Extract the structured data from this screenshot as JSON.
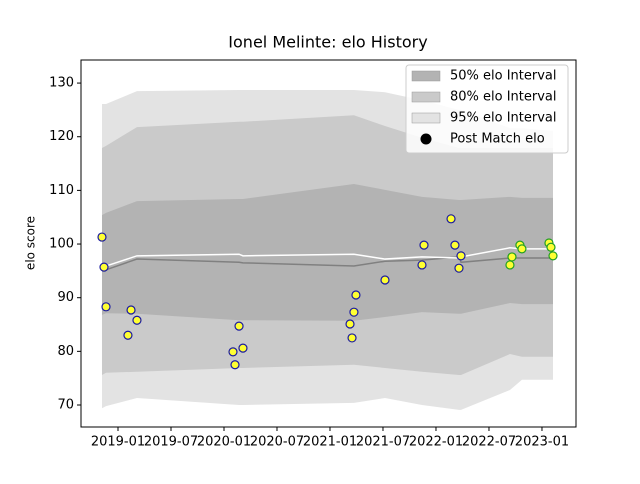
{
  "chart_data": {
    "type": "interval",
    "title": "Ionel Melinte: elo History",
    "y_label": "elo score",
    "xlim": [
      2018.651,
      2023.321
    ],
    "ylim": [
      65.9,
      134.3
    ],
    "xticks": [
      {
        "value": 2019.0,
        "label": "2019-01"
      },
      {
        "value": 2019.5,
        "label": "2019-07"
      },
      {
        "value": 2020.0,
        "label": "2020-01"
      },
      {
        "value": 2020.5,
        "label": "2020-07"
      },
      {
        "value": 2021.0,
        "label": "2021-01"
      },
      {
        "value": 2021.5,
        "label": "2021-07"
      },
      {
        "value": 2022.0,
        "label": "2022-01"
      },
      {
        "value": 2022.5,
        "label": "2022-07"
      },
      {
        "value": 2023.0,
        "label": "2023-01"
      }
    ],
    "yticks": [
      70,
      80,
      90,
      100,
      110,
      120,
      130
    ],
    "legend": "upper right",
    "band_x": [
      2018.849,
      2018.887,
      2019.179,
      2020.142,
      2020.179,
      2021.226,
      2021.519,
      2021.868,
      2022.217,
      2022.236,
      2022.698,
      2022.811,
      2023.104
    ],
    "bands": [
      {
        "name": "95% elo Interval",
        "color": "#e3e3e3",
        "upper": [
          126.1,
          126.1,
          128.5,
          128.7,
          128.7,
          128.7,
          128.3,
          126.8,
          125.0,
          125.0,
          121.6,
          121.6,
          121.1
        ],
        "lower": [
          69.4,
          69.8,
          71.3,
          70.0,
          70.0,
          70.4,
          71.3,
          70.0,
          69.1,
          69.1,
          72.8,
          74.7,
          74.7
        ]
      },
      {
        "name": "80% elo Interval",
        "color": "#cacaca",
        "upper": [
          117.9,
          118.3,
          121.8,
          122.8,
          122.8,
          124.0,
          122.0,
          119.8,
          117.9,
          117.9,
          117.9,
          117.9,
          117.9
        ],
        "lower": [
          75.6,
          76.0,
          76.2,
          76.9,
          76.9,
          77.5,
          76.9,
          76.2,
          75.6,
          75.6,
          79.5,
          79.0,
          79.0
        ]
      },
      {
        "name": "50% elo Interval",
        "color": "#b3b3b3",
        "upper": [
          105.4,
          105.8,
          108.0,
          108.4,
          108.4,
          111.2,
          110.1,
          108.8,
          108.2,
          108.2,
          108.8,
          108.6,
          108.6
        ],
        "lower": [
          86.8,
          87.1,
          87.0,
          85.8,
          85.8,
          85.7,
          86.4,
          87.3,
          87.0,
          87.0,
          89.0,
          88.8,
          88.8
        ]
      }
    ],
    "lines": [
      {
        "color": "#808080",
        "values": [
          95.0,
          95.2,
          97.2,
          96.6,
          96.5,
          95.9,
          96.8,
          97.0,
          97.6,
          96.6,
          97.4,
          97.4,
          97.4
        ]
      },
      {
        "color": "#ffffff",
        "values": [
          95.9,
          95.9,
          97.8,
          98.1,
          97.8,
          98.1,
          97.2,
          97.6,
          97.4,
          97.6,
          99.3,
          99.1,
          99.1
        ]
      }
    ],
    "series": [
      {
        "name": "Post Match elo",
        "color": "#000000",
        "fill": "#ffff33",
        "x": [
          2018.849,
          2018.868,
          2018.887,
          2019.094,
          2019.123,
          2019.179,
          2020.085,
          2020.104,
          2020.142,
          2020.179,
          2021.189,
          2021.208,
          2021.226,
          2021.245,
          2021.519,
          2021.868,
          2021.887,
          2022.142,
          2022.179,
          2022.217,
          2022.236,
          2022.698,
          2022.717,
          2022.792,
          2022.811,
          2023.066,
          2023.085,
          2023.104
        ],
        "values": [
          101.3,
          95.7,
          88.3,
          83.0,
          87.7,
          85.8,
          79.9,
          77.5,
          84.7,
          80.6,
          85.1,
          82.5,
          87.3,
          90.5,
          93.3,
          96.1,
          99.8,
          104.7,
          99.8,
          95.5,
          97.8,
          96.1,
          97.6,
          99.8,
          99.1,
          100.2,
          99.4,
          97.8
        ],
        "edgecolors": [
          "#1a1aa0",
          "#1a1aa0",
          "#1a1aa0",
          "#1a1aa0",
          "#1a1aa0",
          "#1a1aa0",
          "#1a1aa0",
          "#1a1aa0",
          "#1a1aa0",
          "#1a1aa0",
          "#1a1aa0",
          "#1a1aa0",
          "#1a1aa0",
          "#1a1aa0",
          "#1a1aa0",
          "#1a1aa0",
          "#1a1aa0",
          "#1a1aa0",
          "#1a1aa0",
          "#1a1aa0",
          "#1a1aa0",
          "#22a022",
          "#22a022",
          "#22a022",
          "#22a022",
          "#22a022",
          "#22a022",
          "#22a022"
        ]
      }
    ]
  }
}
